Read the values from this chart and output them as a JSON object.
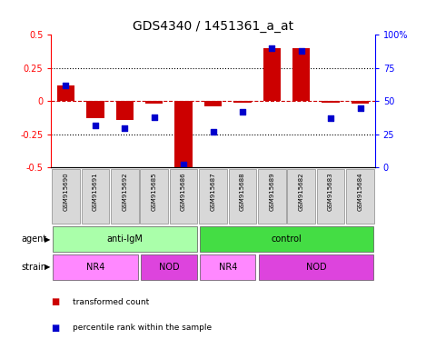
{
  "title": "GDS4340 / 1451361_a_at",
  "samples": [
    "GSM915690",
    "GSM915691",
    "GSM915692",
    "GSM915685",
    "GSM915686",
    "GSM915687",
    "GSM915688",
    "GSM915689",
    "GSM915682",
    "GSM915683",
    "GSM915684"
  ],
  "transformed_count": [
    0.12,
    -0.13,
    -0.14,
    -0.02,
    -0.5,
    -0.04,
    -0.01,
    0.4,
    0.4,
    -0.01,
    -0.02
  ],
  "percentile_rank": [
    62,
    32,
    30,
    38,
    2,
    27,
    42,
    90,
    88,
    37,
    45
  ],
  "ylim_left": [
    -0.5,
    0.5
  ],
  "ylim_right": [
    0,
    100
  ],
  "yticks_left": [
    -0.5,
    -0.25,
    0.0,
    0.25,
    0.5
  ],
  "yticks_right": [
    0,
    25,
    50,
    75,
    100
  ],
  "bar_color": "#cc0000",
  "dot_color": "#0000cc",
  "agent_groups": [
    {
      "label": "anti-IgM",
      "start": 0,
      "end": 5,
      "color": "#aaffaa"
    },
    {
      "label": "control",
      "start": 5,
      "end": 11,
      "color": "#44dd44"
    }
  ],
  "strain_groups": [
    {
      "label": "NR4",
      "start": 0,
      "end": 3,
      "color": "#ff88ff"
    },
    {
      "label": "NOD",
      "start": 3,
      "end": 5,
      "color": "#dd44dd"
    },
    {
      "label": "NR4",
      "start": 5,
      "end": 7,
      "color": "#ff88ff"
    },
    {
      "label": "NOD",
      "start": 7,
      "end": 11,
      "color": "#dd44dd"
    }
  ],
  "legend_items": [
    {
      "label": "transformed count",
      "color": "#cc0000"
    },
    {
      "label": "percentile rank within the sample",
      "color": "#0000cc"
    }
  ],
  "hline_color": "#cc0000",
  "dotted_line_color": "#000000",
  "agent_label": "agent",
  "strain_label": "strain",
  "background_color": "#ffffff",
  "title_fontsize": 10
}
